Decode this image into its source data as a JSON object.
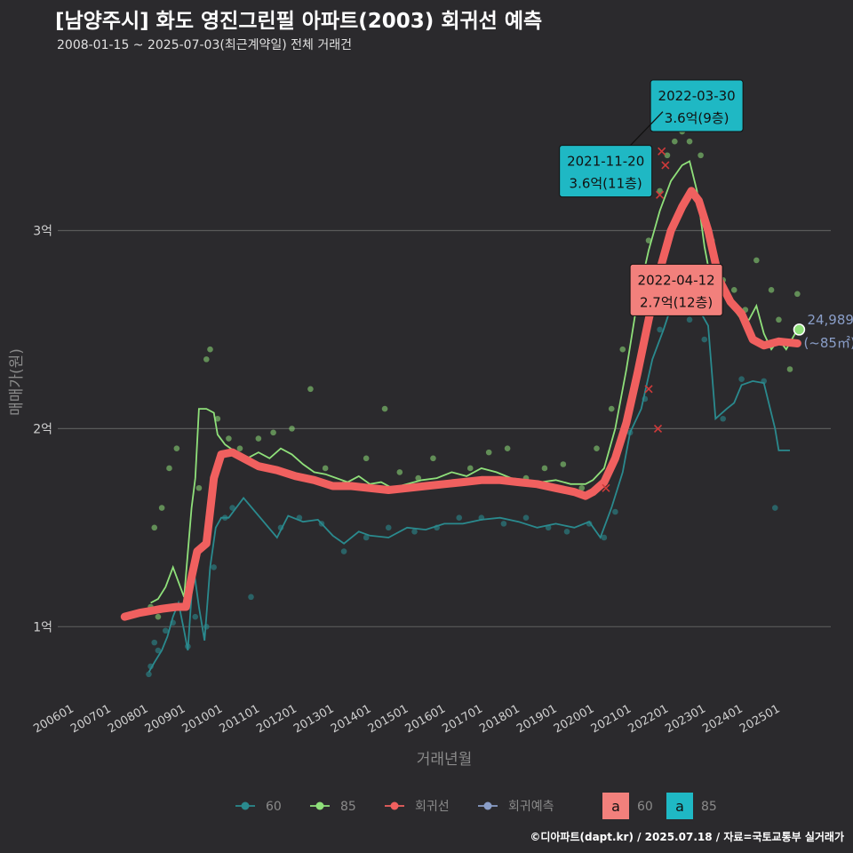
{
  "header": {
    "title": "[남양주시] 화도 영진그린필 아파트(2003) 회귀선 예측",
    "subtitle": "2008-01-15 ~ 2025-07-03(최근계약일) 전체 거래건"
  },
  "footer": {
    "credit": "©디아파트(dapt.kr) / 2025.07.18 / 자료=국토교통부 실거래가"
  },
  "colors": {
    "s60": "#2a8a8e",
    "s85": "#8fe07a",
    "trend": "#f0605f",
    "forecast": "#8a9ec8",
    "grid": "#5a5a5a"
  },
  "chart_data": {
    "type": "line",
    "xlabel": "거래년월",
    "ylabel": "매매가(원)",
    "x_ticks": [
      "200601",
      "200701",
      "200801",
      "200901",
      "201001",
      "201101",
      "201201",
      "201301",
      "201401",
      "201501",
      "201601",
      "201701",
      "201801",
      "201901",
      "202001",
      "202101",
      "202201",
      "202301",
      "202401",
      "202501"
    ],
    "y_ticks": [
      {
        "value": 1.0,
        "label": "1억"
      },
      {
        "value": 2.0,
        "label": "2억"
      },
      {
        "value": 3.0,
        "label": "3억"
      }
    ],
    "xlim": [
      2005.6,
      2026.4
    ],
    "ylim": [
      0.62,
      3.85
    ],
    "series": [
      {
        "name": "60",
        "points": [
          [
            2008.05,
            0.77
          ],
          [
            2008.2,
            0.82
          ],
          [
            2008.4,
            0.88
          ],
          [
            2008.55,
            0.95
          ],
          [
            2008.7,
            1.05
          ],
          [
            2008.85,
            1.12
          ],
          [
            2009.0,
            0.98
          ],
          [
            2009.1,
            0.88
          ],
          [
            2009.25,
            1.3
          ],
          [
            2009.4,
            1.1
          ],
          [
            2009.55,
            0.93
          ],
          [
            2009.7,
            1.3
          ],
          [
            2009.85,
            1.5
          ],
          [
            2010.0,
            1.55
          ],
          [
            2010.2,
            1.55
          ],
          [
            2010.4,
            1.6
          ],
          [
            2010.6,
            1.65
          ],
          [
            2011.5,
            1.45
          ],
          [
            2011.8,
            1.56
          ],
          [
            2012.2,
            1.53
          ],
          [
            2012.6,
            1.54
          ],
          [
            2013.0,
            1.46
          ],
          [
            2013.3,
            1.42
          ],
          [
            2013.7,
            1.48
          ],
          [
            2014.0,
            1.46
          ],
          [
            2014.5,
            1.45
          ],
          [
            2015.0,
            1.5
          ],
          [
            2015.5,
            1.49
          ],
          [
            2016.0,
            1.52
          ],
          [
            2016.5,
            1.52
          ],
          [
            2017.0,
            1.54
          ],
          [
            2017.5,
            1.55
          ],
          [
            2018.0,
            1.53
          ],
          [
            2018.5,
            1.5
          ],
          [
            2019.0,
            1.52
          ],
          [
            2019.5,
            1.5
          ],
          [
            2019.9,
            1.53
          ],
          [
            2020.2,
            1.45
          ],
          [
            2020.5,
            1.6
          ],
          [
            2020.8,
            1.78
          ],
          [
            2021.0,
            1.98
          ],
          [
            2021.3,
            2.1
          ],
          [
            2021.6,
            2.35
          ],
          [
            2021.9,
            2.5
          ],
          [
            2022.2,
            2.67
          ],
          [
            2022.5,
            2.6
          ],
          [
            2022.8,
            2.62
          ],
          [
            2023.1,
            2.52
          ],
          [
            2023.3,
            2.05
          ],
          [
            2023.6,
            2.1
          ],
          [
            2023.8,
            2.13
          ],
          [
            2024.0,
            2.22
          ],
          [
            2024.3,
            2.24
          ],
          [
            2024.6,
            2.23
          ],
          [
            2024.9,
            2.0
          ],
          [
            2025.0,
            1.89
          ],
          [
            2025.3,
            1.89
          ]
        ]
      },
      {
        "name": "85",
        "points": [
          [
            2008.1,
            1.12
          ],
          [
            2008.3,
            1.14
          ],
          [
            2008.5,
            1.2
          ],
          [
            2008.7,
            1.3
          ],
          [
            2008.9,
            1.2
          ],
          [
            2009.0,
            1.15
          ],
          [
            2009.2,
            1.6
          ],
          [
            2009.3,
            1.75
          ],
          [
            2009.4,
            2.1
          ],
          [
            2009.6,
            2.1
          ],
          [
            2009.8,
            2.08
          ],
          [
            2009.9,
            1.97
          ],
          [
            2010.1,
            1.92
          ],
          [
            2010.4,
            1.88
          ],
          [
            2010.7,
            1.85
          ],
          [
            2011.0,
            1.88
          ],
          [
            2011.3,
            1.85
          ],
          [
            2011.6,
            1.9
          ],
          [
            2011.9,
            1.87
          ],
          [
            2012.2,
            1.82
          ],
          [
            2012.5,
            1.78
          ],
          [
            2012.8,
            1.77
          ],
          [
            2013.1,
            1.75
          ],
          [
            2013.4,
            1.73
          ],
          [
            2013.7,
            1.76
          ],
          [
            2014.0,
            1.72
          ],
          [
            2014.3,
            1.73
          ],
          [
            2014.6,
            1.7
          ],
          [
            2015.0,
            1.72
          ],
          [
            2015.4,
            1.74
          ],
          [
            2015.8,
            1.75
          ],
          [
            2016.2,
            1.78
          ],
          [
            2016.6,
            1.76
          ],
          [
            2017.0,
            1.8
          ],
          [
            2017.4,
            1.78
          ],
          [
            2017.8,
            1.75
          ],
          [
            2018.2,
            1.74
          ],
          [
            2018.6,
            1.73
          ],
          [
            2019.0,
            1.74
          ],
          [
            2019.4,
            1.72
          ],
          [
            2019.8,
            1.72
          ],
          [
            2020.0,
            1.74
          ],
          [
            2020.3,
            1.8
          ],
          [
            2020.6,
            2.0
          ],
          [
            2020.9,
            2.3
          ],
          [
            2021.2,
            2.65
          ],
          [
            2021.5,
            2.9
          ],
          [
            2021.8,
            3.1
          ],
          [
            2022.1,
            3.25
          ],
          [
            2022.4,
            3.33
          ],
          [
            2022.6,
            3.35
          ],
          [
            2022.8,
            3.2
          ],
          [
            2023.0,
            2.92
          ],
          [
            2023.2,
            2.72
          ],
          [
            2023.4,
            2.8
          ],
          [
            2023.6,
            2.7
          ],
          [
            2023.8,
            2.6
          ],
          [
            2024.0,
            2.55
          ],
          [
            2024.2,
            2.55
          ],
          [
            2024.4,
            2.62
          ],
          [
            2024.6,
            2.48
          ],
          [
            2024.8,
            2.4
          ],
          [
            2025.0,
            2.45
          ],
          [
            2025.2,
            2.4
          ],
          [
            2025.5,
            2.5
          ]
        ]
      },
      {
        "name": "회귀선",
        "points": [
          [
            2007.4,
            1.05
          ],
          [
            2007.8,
            1.07
          ],
          [
            2008.1,
            1.08
          ],
          [
            2008.4,
            1.09
          ],
          [
            2008.8,
            1.1
          ],
          [
            2009.05,
            1.1
          ],
          [
            2009.2,
            1.25
          ],
          [
            2009.35,
            1.38
          ],
          [
            2009.6,
            1.42
          ],
          [
            2009.8,
            1.75
          ],
          [
            2010.0,
            1.87
          ],
          [
            2010.3,
            1.88
          ],
          [
            2010.6,
            1.85
          ],
          [
            2011.0,
            1.81
          ],
          [
            2011.5,
            1.79
          ],
          [
            2012.0,
            1.76
          ],
          [
            2012.5,
            1.74
          ],
          [
            2013.0,
            1.71
          ],
          [
            2013.5,
            1.71
          ],
          [
            2014.0,
            1.7
          ],
          [
            2014.5,
            1.69
          ],
          [
            2015.0,
            1.7
          ],
          [
            2015.5,
            1.71
          ],
          [
            2016.0,
            1.72
          ],
          [
            2016.5,
            1.73
          ],
          [
            2017.0,
            1.74
          ],
          [
            2017.5,
            1.74
          ],
          [
            2018.0,
            1.73
          ],
          [
            2018.5,
            1.72
          ],
          [
            2019.0,
            1.7
          ],
          [
            2019.5,
            1.68
          ],
          [
            2019.8,
            1.66
          ],
          [
            2020.0,
            1.68
          ],
          [
            2020.3,
            1.73
          ],
          [
            2020.6,
            1.85
          ],
          [
            2020.9,
            2.03
          ],
          [
            2021.2,
            2.28
          ],
          [
            2021.5,
            2.55
          ],
          [
            2021.8,
            2.8
          ],
          [
            2022.1,
            3.0
          ],
          [
            2022.4,
            3.12
          ],
          [
            2022.65,
            3.2
          ],
          [
            2022.85,
            3.15
          ],
          [
            2023.1,
            3.0
          ],
          [
            2023.4,
            2.75
          ],
          [
            2023.7,
            2.64
          ],
          [
            2024.0,
            2.58
          ],
          [
            2024.3,
            2.45
          ],
          [
            2024.6,
            2.42
          ],
          [
            2025.0,
            2.44
          ],
          [
            2025.5,
            2.43
          ]
        ]
      }
    ],
    "scatter_60": [
      [
        2008.05,
        0.76
      ],
      [
        2008.1,
        0.8
      ],
      [
        2008.2,
        0.92
      ],
      [
        2008.3,
        0.88
      ],
      [
        2008.5,
        0.98
      ],
      [
        2008.7,
        1.02
      ],
      [
        2009.1,
        0.9
      ],
      [
        2009.3,
        1.05
      ],
      [
        2009.6,
        1.0
      ],
      [
        2009.8,
        1.3
      ],
      [
        2010.1,
        1.55
      ],
      [
        2010.3,
        1.6
      ],
      [
        2010.8,
        1.15
      ],
      [
        2011.6,
        1.5
      ],
      [
        2012.1,
        1.55
      ],
      [
        2012.7,
        1.52
      ],
      [
        2013.3,
        1.38
      ],
      [
        2013.9,
        1.45
      ],
      [
        2014.5,
        1.5
      ],
      [
        2015.2,
        1.48
      ],
      [
        2015.8,
        1.5
      ],
      [
        2016.4,
        1.55
      ],
      [
        2017.0,
        1.55
      ],
      [
        2017.6,
        1.52
      ],
      [
        2018.2,
        1.55
      ],
      [
        2018.8,
        1.5
      ],
      [
        2019.3,
        1.48
      ],
      [
        2019.9,
        1.52
      ],
      [
        2020.3,
        1.45
      ],
      [
        2020.6,
        1.58
      ],
      [
        2021.0,
        1.98
      ],
      [
        2021.4,
        2.15
      ],
      [
        2021.8,
        2.5
      ],
      [
        2022.2,
        2.62
      ],
      [
        2022.6,
        2.55
      ],
      [
        2023.0,
        2.45
      ],
      [
        2023.5,
        2.05
      ],
      [
        2024.0,
        2.25
      ],
      [
        2024.6,
        2.24
      ],
      [
        2024.9,
        1.6
      ]
    ],
    "scatter_85": [
      [
        2008.1,
        1.1
      ],
      [
        2008.2,
        1.5
      ],
      [
        2008.3,
        1.05
      ],
      [
        2008.4,
        1.6
      ],
      [
        2008.6,
        1.8
      ],
      [
        2008.8,
        1.9
      ],
      [
        2009.4,
        1.7
      ],
      [
        2009.6,
        2.35
      ],
      [
        2009.7,
        2.4
      ],
      [
        2009.9,
        2.05
      ],
      [
        2010.2,
        1.95
      ],
      [
        2010.5,
        1.9
      ],
      [
        2011.0,
        1.95
      ],
      [
        2011.4,
        1.98
      ],
      [
        2011.9,
        2.0
      ],
      [
        2012.4,
        2.2
      ],
      [
        2012.8,
        1.8
      ],
      [
        2013.3,
        1.72
      ],
      [
        2013.9,
        1.85
      ],
      [
        2014.4,
        2.1
      ],
      [
        2014.8,
        1.78
      ],
      [
        2015.3,
        1.75
      ],
      [
        2015.7,
        1.85
      ],
      [
        2016.2,
        1.72
      ],
      [
        2016.7,
        1.8
      ],
      [
        2017.2,
        1.88
      ],
      [
        2017.7,
        1.9
      ],
      [
        2018.2,
        1.75
      ],
      [
        2018.7,
        1.8
      ],
      [
        2019.2,
        1.82
      ],
      [
        2019.7,
        1.7
      ],
      [
        2020.1,
        1.9
      ],
      [
        2020.5,
        2.1
      ],
      [
        2020.8,
        2.4
      ],
      [
        2021.1,
        2.7
      ],
      [
        2021.5,
        2.95
      ],
      [
        2021.8,
        3.2
      ],
      [
        2022.0,
        3.38
      ],
      [
        2022.2,
        3.45
      ],
      [
        2022.4,
        3.5
      ],
      [
        2022.6,
        3.45
      ],
      [
        2022.9,
        3.38
      ],
      [
        2023.2,
        2.95
      ],
      [
        2023.5,
        2.75
      ],
      [
        2023.8,
        2.7
      ],
      [
        2024.1,
        2.6
      ],
      [
        2024.4,
        2.85
      ],
      [
        2024.8,
        2.7
      ],
      [
        2025.0,
        2.55
      ],
      [
        2025.3,
        2.3
      ],
      [
        2025.5,
        2.68
      ]
    ],
    "outlier_marks": [
      [
        2021.85,
        3.4
      ],
      [
        2021.95,
        3.33
      ],
      [
        2022.3,
        3.6
      ],
      [
        2021.8,
        3.18
      ],
      [
        2023.3,
        2.72
      ],
      [
        2020.35,
        1.7
      ],
      [
        2021.5,
        2.2
      ],
      [
        2021.75,
        2.0
      ]
    ],
    "forecast_point": {
      "x": 2025.55,
      "y": 2.5,
      "label_value": "24,989",
      "label_area": "(~85㎡)"
    },
    "annotations": [
      {
        "x": 2022.25,
        "y": 3.6,
        "line1": "2022-03-30",
        "line2": "3.6억(9층)",
        "fill": "#1fb8c4",
        "lx": 2021.55,
        "ly": 3.63
      },
      {
        "x": 2021.88,
        "y": 3.6,
        "line1": "2021-11-20",
        "line2": "3.6억(11층)",
        "fill": "#1fb8c4",
        "lx": 2019.1,
        "ly": 3.3
      },
      {
        "x": 2022.28,
        "y": 2.7,
        "line1": "2022-04-12",
        "line2": "2.7억(12층)",
        "fill": "#f2807c",
        "lx": 2021.0,
        "ly": 2.7
      }
    ],
    "legend": [
      {
        "label": "60",
        "kind": "line-point",
        "color": "#2a8a8e"
      },
      {
        "label": "85",
        "kind": "line-point",
        "color": "#8fe07a"
      },
      {
        "label": "회귀선",
        "kind": "line-point",
        "color": "#f0605f"
      },
      {
        "label": "회귀예측",
        "kind": "line-point",
        "color": "#8a9ec8"
      },
      {
        "label": "60",
        "kind": "box",
        "glyph": "a",
        "color": "#f2807c"
      },
      {
        "label": "85",
        "kind": "box",
        "glyph": "a",
        "color": "#1fb8c4"
      }
    ]
  }
}
